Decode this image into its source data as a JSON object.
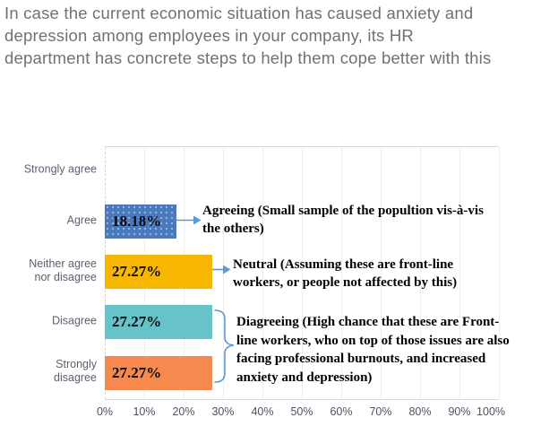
{
  "title": "In case the current economic situation has caused anxiety and depression among employees in your company, its HR department has concrete steps to help them cope better with this",
  "chart_data": {
    "type": "bar",
    "orientation": "horizontal",
    "categories": [
      "Strongly agree",
      "Agree",
      "Neither agree nor disagree",
      "Disagree",
      "Strongly disagree"
    ],
    "values": [
      0,
      18.18,
      27.27,
      27.27,
      27.27
    ],
    "value_labels": [
      "",
      "18.18%",
      "27.27%",
      "27.27%",
      "27.27%"
    ],
    "bar_colors": [
      "transparent",
      "#4a79bd",
      "#f7b600",
      "#67c3c9",
      "#f7894f"
    ],
    "xticks": [
      "0%",
      "10%",
      "20%",
      "30%",
      "40%",
      "50%",
      "60%",
      "70%",
      "80%",
      "90%",
      "100%"
    ],
    "xlim": [
      0,
      100
    ],
    "xlabel": "",
    "ylabel": "",
    "grid": "vertical light gray lines every 10%",
    "legend": "none",
    "connector_color": "#5b9bd5",
    "annotations": [
      {
        "id": "agreeing",
        "text": "Agreeing (Small sample of the popultion vis-à-vis the others)",
        "connector": "arrow",
        "targets": [
          "Agree"
        ]
      },
      {
        "id": "neutral",
        "text": "Neutral (Assuming these are front-line workers, or people not affected by this)",
        "connector": "arrow",
        "targets": [
          "Neither agree nor disagree"
        ]
      },
      {
        "id": "disagreeing",
        "text": "Diagreeing (High chance that these are Front-line workers, who on top of those issues are also facing professional burnouts, and increased anxiety and depression)",
        "connector": "brace",
        "targets": [
          "Disagree",
          "Strongly disagree"
        ]
      }
    ]
  },
  "colors": {
    "title_text": "#6e7277",
    "category_text": "#5a6270",
    "tick_text": "#4b5260",
    "gridline": "#ededed",
    "plot_border": "#d9d9d9",
    "value_label_text": "#0b0b0b"
  }
}
